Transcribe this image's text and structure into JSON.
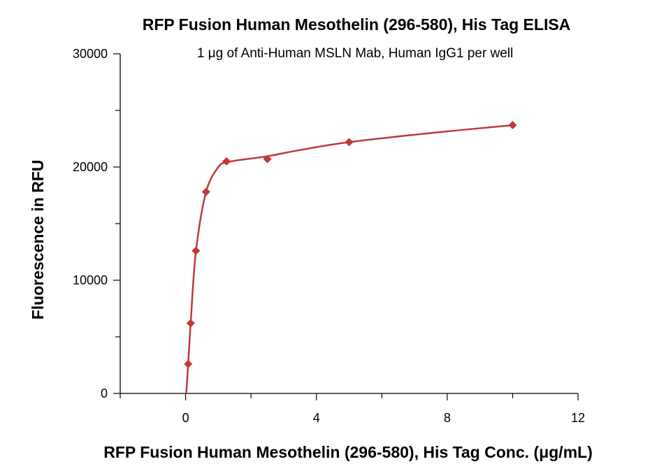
{
  "chart_data": {
    "type": "scatter",
    "title": "RFP Fusion Human Mesothelin (296-580), His Tag ELISA",
    "subtitle": "1 μg of Anti-Human MSLN Mab, Human IgG1 per well",
    "xlabel": "RFP Fusion Human Mesothelin (296-580), His Tag Conc. (μg/mL)",
    "ylabel": "Fluorescence in RFU",
    "xlim": [
      -2,
      12
    ],
    "ylim": [
      0,
      30000
    ],
    "x_ticks": [
      0,
      4,
      8,
      12
    ],
    "x_tick_labels": [
      "0",
      "4",
      "8",
      "12"
    ],
    "y_ticks": [
      0,
      10000,
      20000,
      30000
    ],
    "y_tick_labels": [
      "0",
      "10000",
      "20000",
      "30000"
    ],
    "grid": false,
    "color": "#c0393b",
    "series": [
      {
        "marker": "diamond",
        "points": [
          {
            "x": 0.078,
            "y": 2600
          },
          {
            "x": 0.156,
            "y": 6200
          },
          {
            "x": 0.313,
            "y": 12600
          },
          {
            "x": 0.625,
            "y": 17800
          },
          {
            "x": 1.25,
            "y": 20500
          },
          {
            "x": 2.5,
            "y": 20700
          },
          {
            "x": 5,
            "y": 22200
          },
          {
            "x": 10,
            "y": 23700
          }
        ]
      }
    ]
  }
}
